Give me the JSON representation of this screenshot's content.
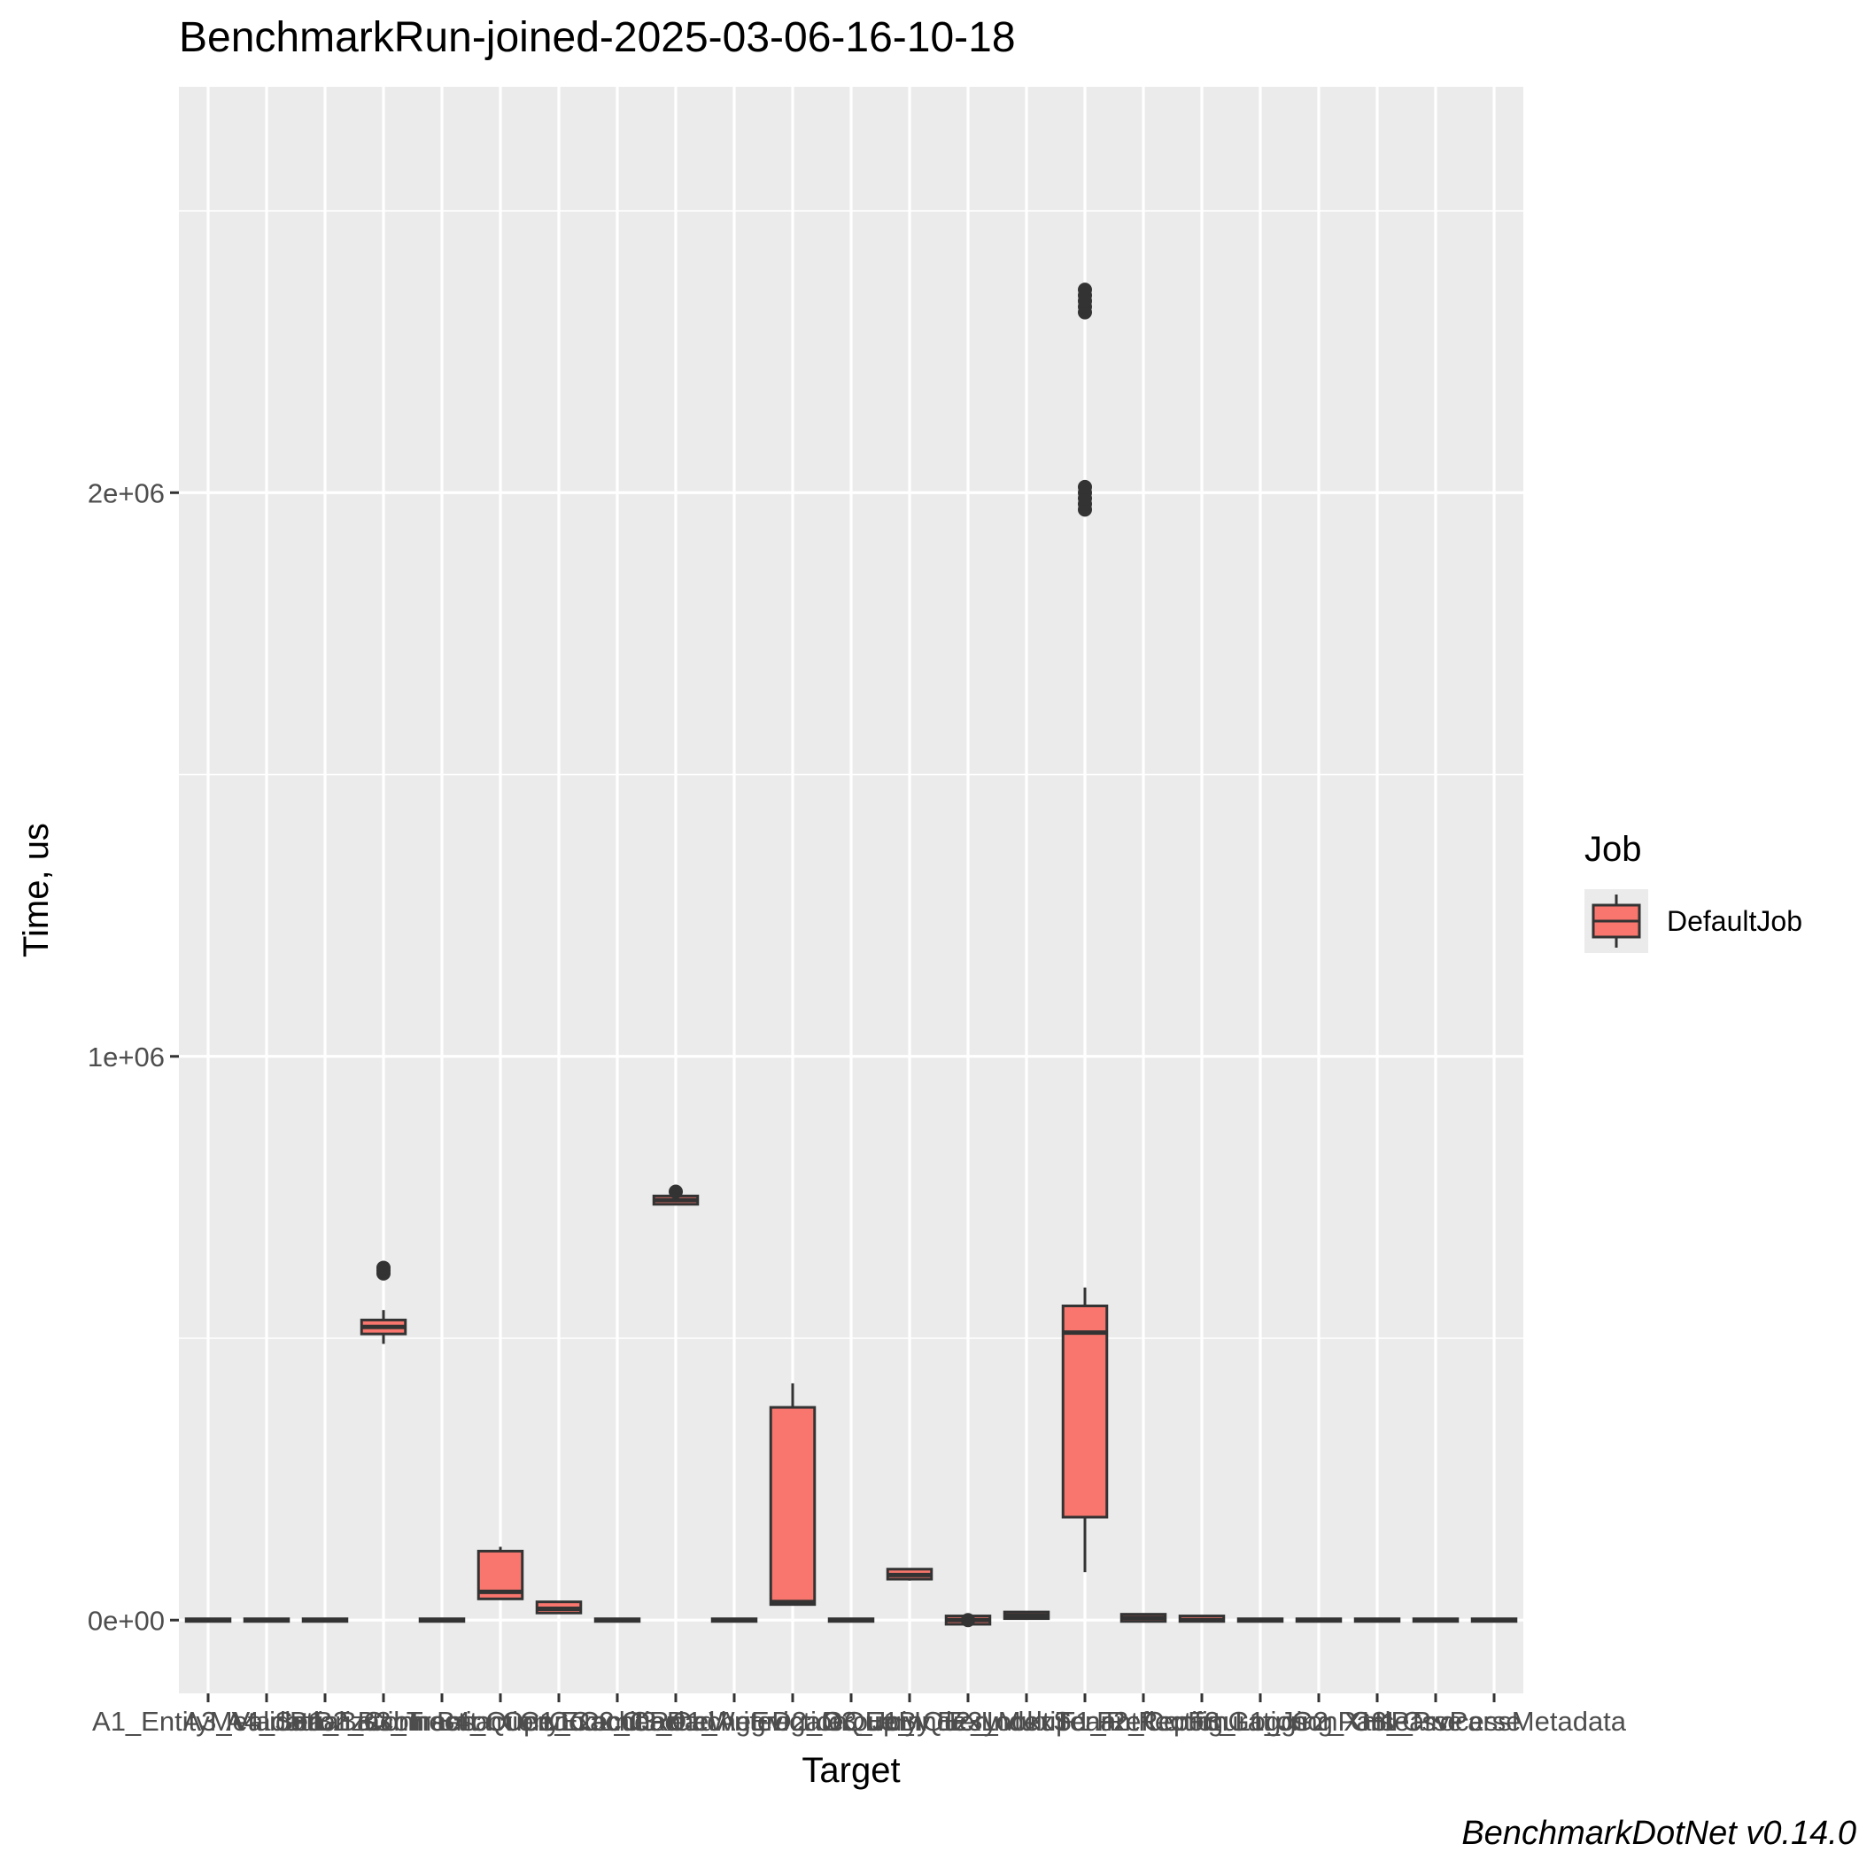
{
  "chart_data": {
    "type": "box",
    "title": "BenchmarkRun-joined-2025-03-06-16-10-18",
    "xlabel": "Target",
    "ylabel": "Time, us",
    "caption": "BenchmarkDotNet v0.14.0",
    "ylim": [
      -130000,
      2720000
    ],
    "y_ticks": [
      0,
      1000000,
      2000000
    ],
    "y_tick_labels": [
      "0e+00",
      "1e+06",
      "2e+06"
    ],
    "grid": true,
    "legend": {
      "title": "Job",
      "position": "right",
      "entries": [
        "DefaultJob"
      ]
    },
    "colors": {
      "fill": "#F8766D",
      "outline": "#333333",
      "panel": "#EBEBEB",
      "grid": "#FFFFFF"
    },
    "categories": [
      {
        "label": "A1_EntityMetadata",
        "q1": 0,
        "median": 0,
        "q3": 0,
        "lower": 0,
        "upper": 0,
        "outliers": []
      },
      {
        "label": "A3_Validation",
        "q1": 0,
        "median": 0,
        "q3": 0,
        "lower": 0,
        "upper": 0,
        "outliers": []
      },
      {
        "label": "A4_Serialization",
        "q1": 0,
        "median": 0,
        "q3": 0,
        "lower": 0,
        "upper": 0,
        "outliers": []
      },
      {
        "label": "B1_BatchInsert",
        "q1": 510000,
        "median": 520000,
        "q3": 530000,
        "lower": 490000,
        "upper": 550000,
        "outliers": [
          615000,
          620000,
          625000
        ]
      },
      {
        "label": "B2_ConnectionOpen",
        "q1": 0,
        "median": 0,
        "q3": 0,
        "lower": 0,
        "upper": 0,
        "outliers": []
      },
      {
        "label": "B3_TransactionCommit",
        "q1": 40000,
        "median": 50000,
        "q3": 120000,
        "lower": 40000,
        "upper": 130000,
        "outliers": []
      },
      {
        "label": "B4_QueryExecution",
        "q1": 15000,
        "median": 20000,
        "q3": 30000,
        "lower": 15000,
        "upper": 30000,
        "outliers": []
      },
      {
        "label": "C1_CacheRead",
        "q1": 0,
        "median": 0,
        "q3": 0,
        "lower": 0,
        "upper": 0,
        "outliers": []
      },
      {
        "label": "C2_CacheWrite",
        "q1": 740000,
        "median": 745000,
        "q3": 750000,
        "lower": 740000,
        "upper": 755000,
        "outliers": [
          760000
        ]
      },
      {
        "label": "C3_CacheEviction",
        "q1": 0,
        "median": 0,
        "q3": 0,
        "lower": 0,
        "upper": 0,
        "outliers": []
      },
      {
        "label": "D1_AggregateQuery",
        "q1": 30000,
        "median": 32000,
        "q3": 375000,
        "lower": 30000,
        "upper": 420000,
        "outliers": []
      },
      {
        "label": "D2_GroupBy",
        "q1": 0,
        "median": 0,
        "q3": 0,
        "lower": 0,
        "upper": 0,
        "outliers": []
      },
      {
        "label": "D3_JoinQuery",
        "q1": 75000,
        "median": 80000,
        "q3": 88000,
        "lower": 70000,
        "upper": 90000,
        "outliers": []
      },
      {
        "label": "E1_IndexLookup",
        "q1": -5000,
        "median": 0,
        "q3": 5000,
        "lower": -8000,
        "upper": 8000,
        "outliers": [
          0
        ]
      },
      {
        "label": "E2_IndexScan",
        "q1": 5000,
        "median": 8000,
        "q3": 12000,
        "lower": 5000,
        "upper": 12000,
        "outliers": []
      },
      {
        "label": "E3_MultiTenantReport",
        "q1": 185000,
        "median": 510000,
        "q3": 555000,
        "lower": 85000,
        "upper": 590000,
        "outliers": [
          1970000,
          1980000,
          1990000,
          2000000,
          2010000,
          2320000,
          2330000,
          2340000,
          2350000,
          2360000
        ]
      },
      {
        "label": "F1_Reflection",
        "q1": 0,
        "median": 4000,
        "q3": 8000,
        "lower": 0,
        "upper": 8000,
        "outliers": []
      },
      {
        "label": "F2_Configuration",
        "q1": 0,
        "median": 0,
        "q3": 5000,
        "lower": 0,
        "upper": 5000,
        "outliers": []
      },
      {
        "label": "F3_Logging",
        "q1": 0,
        "median": 0,
        "q3": 0,
        "lower": 0,
        "upper": 0,
        "outliers": []
      },
      {
        "label": "G1_JsonParse",
        "q1": 0,
        "median": 0,
        "q3": 0,
        "lower": 0,
        "upper": 0,
        "outliers": []
      },
      {
        "label": "G2_XmlParse",
        "q1": 0,
        "median": 0,
        "q3": 0,
        "lower": 0,
        "upper": 0,
        "outliers": []
      },
      {
        "label": "G3_CsvParse",
        "q1": 0,
        "median": 0,
        "q3": 0,
        "lower": 0,
        "upper": 0,
        "outliers": []
      },
      {
        "label": "H1_ProcessMetadata",
        "q1": 0,
        "median": 0,
        "q3": 0,
        "lower": 0,
        "upper": 0,
        "outliers": []
      }
    ]
  }
}
